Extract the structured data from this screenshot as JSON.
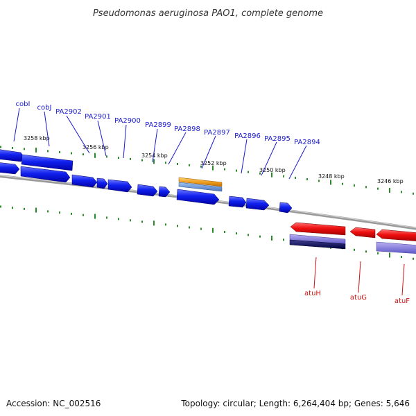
{
  "title": "Pseudomonas aeruginosa PAO1, complete genome",
  "footer": {
    "accession": "Accession: NC_002516",
    "summary": "Topology: circular; Length: 6,264,404 bp; Genes: 5,646"
  },
  "colors": {
    "forward_gene": "#0a14e6",
    "reverse_gene": "#e60a0a",
    "label_blue": "#1a1ad0",
    "label_red": "#cc1111",
    "tick": "#2a8a2a",
    "backbone": "#808080",
    "orange": "#f0a020",
    "steelblue": "#5a8ad0",
    "lavender": "#7a70d8",
    "navy": "#101060"
  },
  "kbp_labels": [
    "3258 kbp",
    "3256 kbp",
    "3254 kbp",
    "3252 kbp",
    "3250 kbp",
    "3248 kbp",
    "3246 kbp"
  ],
  "gene_labels_top": [
    "cobI",
    "cobJ",
    "PA2902",
    "PA2901",
    "PA2900",
    "PA2899",
    "PA2898",
    "PA2897",
    "PA2896",
    "PA2895",
    "PA2894"
  ],
  "gene_labels_bottom": [
    "atuH",
    "atuG",
    "atuF"
  ]
}
